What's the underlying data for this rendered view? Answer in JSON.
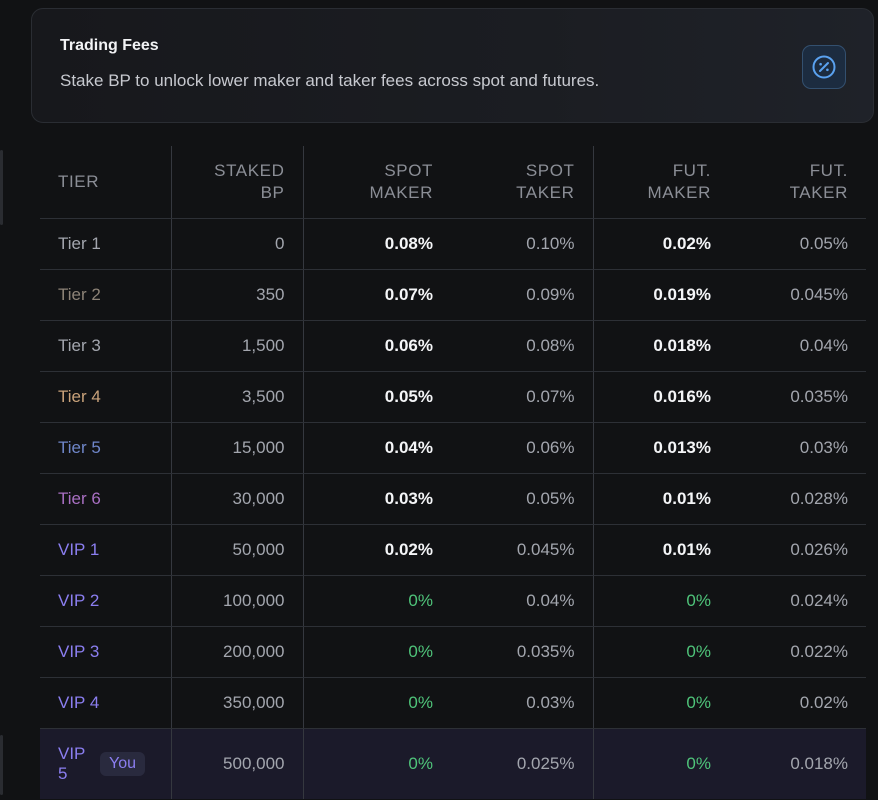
{
  "header": {
    "title": "Trading Fees",
    "subtitle": "Stake BP to unlock lower maker and taker fees across spot and futures.",
    "icon": "percent-badge-icon"
  },
  "table": {
    "columns": [
      {
        "line1": "TIER",
        "line2": ""
      },
      {
        "line1": "STAKED",
        "line2": "BP"
      },
      {
        "line1": "SPOT",
        "line2": "MAKER"
      },
      {
        "line1": "SPOT",
        "line2": "TAKER"
      },
      {
        "line1": "FUT.",
        "line2": "MAKER"
      },
      {
        "line1": "FUT.",
        "line2": "TAKER"
      }
    ],
    "rows": [
      {
        "tier": "Tier 1",
        "staked": "0",
        "spot_maker": "0.08%",
        "spot_taker": "0.10%",
        "fut_maker": "0.02%",
        "fut_taker": "0.05%",
        "tier_color": "#a3a6ae",
        "maker_style": "bright"
      },
      {
        "tier": "Tier 2",
        "staked": "350",
        "spot_maker": "0.07%",
        "spot_taker": "0.09%",
        "fut_maker": "0.019%",
        "fut_taker": "0.045%",
        "tier_color": "#8d8377",
        "maker_style": "bright"
      },
      {
        "tier": "Tier 3",
        "staked": "1,500",
        "spot_maker": "0.06%",
        "spot_taker": "0.08%",
        "fut_maker": "0.018%",
        "fut_taker": "0.04%",
        "tier_color": "#a3a6ae",
        "maker_style": "bright"
      },
      {
        "tier": "Tier 4",
        "staked": "3,500",
        "spot_maker": "0.05%",
        "spot_taker": "0.07%",
        "fut_maker": "0.016%",
        "fut_taker": "0.035%",
        "tier_color": "#c9a27a",
        "maker_style": "bright"
      },
      {
        "tier": "Tier 5",
        "staked": "15,000",
        "spot_maker": "0.04%",
        "spot_taker": "0.06%",
        "fut_maker": "0.013%",
        "fut_taker": "0.03%",
        "tier_color": "#6f86c9",
        "maker_style": "bright"
      },
      {
        "tier": "Tier 6",
        "staked": "30,000",
        "spot_maker": "0.03%",
        "spot_taker": "0.05%",
        "fut_maker": "0.01%",
        "fut_taker": "0.028%",
        "tier_color": "#a86fc2",
        "maker_style": "bright"
      },
      {
        "tier": "VIP 1",
        "staked": "50,000",
        "spot_maker": "0.02%",
        "spot_taker": "0.045%",
        "fut_maker": "0.01%",
        "fut_taker": "0.026%",
        "tier_color": "#8b7ef0",
        "maker_style": "bright"
      },
      {
        "tier": "VIP 2",
        "staked": "100,000",
        "spot_maker": "0%",
        "spot_taker": "0.04%",
        "fut_maker": "0%",
        "fut_taker": "0.024%",
        "tier_color": "#8b7ef0",
        "maker_style": "green"
      },
      {
        "tier": "VIP 3",
        "staked": "200,000",
        "spot_maker": "0%",
        "spot_taker": "0.035%",
        "fut_maker": "0%",
        "fut_taker": "0.022%",
        "tier_color": "#8b7ef0",
        "maker_style": "green"
      },
      {
        "tier": "VIP 4",
        "staked": "350,000",
        "spot_maker": "0%",
        "spot_taker": "0.03%",
        "fut_maker": "0%",
        "fut_taker": "0.02%",
        "tier_color": "#8b7ef0",
        "maker_style": "green"
      },
      {
        "tier": "VIP 5",
        "staked": "500,000",
        "spot_maker": "0%",
        "spot_taker": "0.025%",
        "fut_maker": "0%",
        "fut_taker": "0.018%",
        "tier_color": "#8b7ef0",
        "maker_style": "green",
        "badge": "You"
      }
    ]
  }
}
